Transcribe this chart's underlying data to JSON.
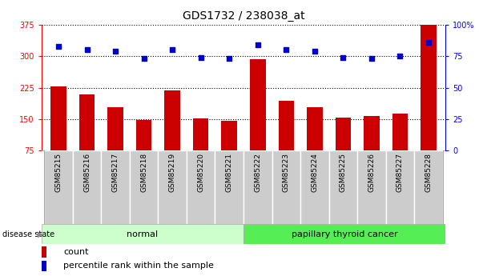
{
  "title": "GDS1732 / 238038_at",
  "categories": [
    "GSM85215",
    "GSM85216",
    "GSM85217",
    "GSM85218",
    "GSM85219",
    "GSM85220",
    "GSM85221",
    "GSM85222",
    "GSM85223",
    "GSM85224",
    "GSM85225",
    "GSM85226",
    "GSM85227",
    "GSM85228"
  ],
  "bar_values": [
    228,
    208,
    178,
    148,
    218,
    152,
    146,
    293,
    193,
    178,
    153,
    158,
    163,
    375
  ],
  "scatter_values": [
    83,
    80,
    79,
    73,
    80,
    74,
    73,
    84,
    80,
    79,
    74,
    73,
    75,
    86
  ],
  "bar_color": "#cc0000",
  "scatter_color": "#0000cc",
  "ylim_left": [
    75,
    375
  ],
  "ylim_right": [
    0,
    100
  ],
  "yticks_left": [
    75,
    150,
    225,
    300,
    375
  ],
  "yticks_right": [
    0,
    25,
    50,
    75,
    100
  ],
  "group_labels": [
    "normal",
    "papillary thyroid cancer"
  ],
  "group_colors_normal": "#ccffcc",
  "group_colors_cancer": "#55ee55",
  "label_bg_color": "#cccccc",
  "disease_state_label": "disease state",
  "legend_bar_label": "count",
  "legend_scatter_label": "percentile rank within the sample",
  "plot_bg_color": "#ffffff",
  "title_fontsize": 10
}
